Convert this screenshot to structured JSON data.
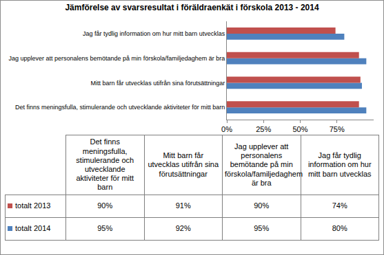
{
  "chart_data": {
    "type": "bar",
    "title": "Jämförelse av svarsresultat i föräldraenkät i förskola 2013 - 2014",
    "orientation": "horizontal",
    "categories": [
      "Det finns meningsfulla, stimulerande och utvecklande aktiviteter för mitt barn",
      "Mitt barn får utvecklas utifrån sina förutsättningar",
      "Jag upplever att personalens bemötande på min förskola/familjedaghem är bra",
      "Jag får tydlig information om hur mitt barn utvecklas"
    ],
    "series": [
      {
        "name": "totalt 2013",
        "color": "#C0504D",
        "values": [
          90,
          91,
          90,
          74
        ],
        "value_labels": [
          "90%",
          "91%",
          "90%",
          "74%"
        ]
      },
      {
        "name": "totalt 2014",
        "color": "#4F81BD",
        "values": [
          95,
          92,
          95,
          80
        ],
        "value_labels": [
          "95%",
          "92%",
          "95%",
          "80%"
        ]
      }
    ],
    "xlim": [
      0,
      100
    ],
    "xticks": [
      {
        "value": 0,
        "label": "0%"
      },
      {
        "value": 25,
        "label": "25%"
      },
      {
        "value": 50,
        "label": "50%"
      },
      {
        "value": 75,
        "label": "75%"
      }
    ],
    "grid": false
  }
}
